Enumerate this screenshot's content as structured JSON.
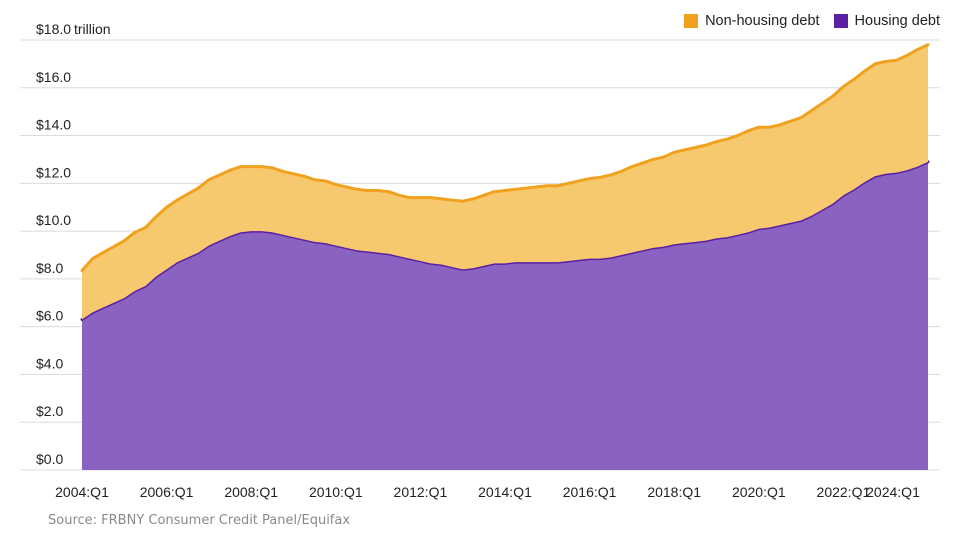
{
  "chart_data": {
    "type": "area",
    "stacked": true,
    "unit_label": "trillion",
    "y_tick_labels": [
      "$0.0",
      "$2.0",
      "$4.0",
      "$6.0",
      "$8.0",
      "$10.0",
      "$12.0",
      "$14.0",
      "$16.0",
      "$18.0"
    ],
    "ylim": [
      0,
      18
    ],
    "x_tick_labels": [
      "2004:Q1",
      "2006:Q1",
      "2008:Q1",
      "2010:Q1",
      "2012:Q1",
      "2014:Q1",
      "2016:Q1",
      "2018:Q1",
      "2020:Q1",
      "2022:Q1",
      "2024:Q1"
    ],
    "grid": true,
    "legend_position": "top-right",
    "x": [
      "2004:Q1",
      "2004:Q2",
      "2004:Q3",
      "2004:Q4",
      "2005:Q1",
      "2005:Q2",
      "2005:Q3",
      "2005:Q4",
      "2006:Q1",
      "2006:Q2",
      "2006:Q3",
      "2006:Q4",
      "2007:Q1",
      "2007:Q2",
      "2007:Q3",
      "2007:Q4",
      "2008:Q1",
      "2008:Q2",
      "2008:Q3",
      "2008:Q4",
      "2009:Q1",
      "2009:Q2",
      "2009:Q3",
      "2009:Q4",
      "2010:Q1",
      "2010:Q2",
      "2010:Q3",
      "2010:Q4",
      "2011:Q1",
      "2011:Q2",
      "2011:Q3",
      "2011:Q4",
      "2012:Q1",
      "2012:Q2",
      "2012:Q3",
      "2012:Q4",
      "2013:Q1",
      "2013:Q2",
      "2013:Q3",
      "2013:Q4",
      "2014:Q1",
      "2014:Q2",
      "2014:Q3",
      "2014:Q4",
      "2015:Q1",
      "2015:Q2",
      "2015:Q3",
      "2015:Q4",
      "2016:Q1",
      "2016:Q2",
      "2016:Q3",
      "2016:Q4",
      "2017:Q1",
      "2017:Q2",
      "2017:Q3",
      "2017:Q4",
      "2018:Q1",
      "2018:Q2",
      "2018:Q3",
      "2018:Q4",
      "2019:Q1",
      "2019:Q2",
      "2019:Q3",
      "2019:Q4",
      "2020:Q1",
      "2020:Q2",
      "2020:Q3",
      "2020:Q4",
      "2021:Q1",
      "2021:Q2",
      "2021:Q3",
      "2021:Q4",
      "2022:Q1",
      "2022:Q2",
      "2022:Q3",
      "2022:Q4",
      "2023:Q1",
      "2023:Q2",
      "2023:Q3",
      "2023:Q4",
      "2024:Q1"
    ],
    "series": [
      {
        "name": "Housing debt",
        "color": "#5b1fa3",
        "fill": "#8a62c2",
        "values": [
          6.3,
          6.6,
          6.8,
          7.0,
          7.2,
          7.5,
          7.7,
          8.1,
          8.4,
          8.7,
          8.9,
          9.1,
          9.4,
          9.6,
          9.8,
          9.95,
          10.0,
          10.0,
          9.95,
          9.85,
          9.75,
          9.65,
          9.55,
          9.5,
          9.4,
          9.3,
          9.2,
          9.15,
          9.1,
          9.05,
          8.95,
          8.85,
          8.75,
          8.65,
          8.6,
          8.5,
          8.4,
          8.45,
          8.55,
          8.65,
          8.65,
          8.7,
          8.7,
          8.7,
          8.7,
          8.7,
          8.75,
          8.8,
          8.85,
          8.85,
          8.9,
          9.0,
          9.1,
          9.2,
          9.3,
          9.35,
          9.45,
          9.5,
          9.55,
          9.6,
          9.7,
          9.75,
          9.85,
          9.95,
          10.1,
          10.15,
          10.25,
          10.35,
          10.45,
          10.65,
          10.9,
          11.15,
          11.5,
          11.75,
          12.05,
          12.3,
          12.4,
          12.45,
          12.55,
          12.7,
          12.9
        ]
      },
      {
        "name": "Non-housing debt",
        "color": "#f0a11e",
        "fill": "#f7c96e",
        "values": [
          2.05,
          2.25,
          2.3,
          2.35,
          2.4,
          2.45,
          2.45,
          2.5,
          2.6,
          2.6,
          2.65,
          2.7,
          2.75,
          2.75,
          2.75,
          2.75,
          2.7,
          2.7,
          2.7,
          2.65,
          2.65,
          2.65,
          2.6,
          2.6,
          2.55,
          2.55,
          2.55,
          2.55,
          2.6,
          2.6,
          2.55,
          2.55,
          2.65,
          2.75,
          2.75,
          2.8,
          2.85,
          2.9,
          2.95,
          3.0,
          3.05,
          3.05,
          3.1,
          3.15,
          3.2,
          3.2,
          3.25,
          3.3,
          3.35,
          3.4,
          3.45,
          3.5,
          3.6,
          3.65,
          3.7,
          3.75,
          3.85,
          3.9,
          3.95,
          4.0,
          4.05,
          4.1,
          4.15,
          4.25,
          4.25,
          4.2,
          4.2,
          4.25,
          4.3,
          4.4,
          4.45,
          4.5,
          4.55,
          4.6,
          4.65,
          4.7,
          4.7,
          4.7,
          4.8,
          4.9,
          4.9
        ]
      }
    ]
  },
  "source_note": "Source: FRBNY Consumer Credit Panel/Equifax"
}
